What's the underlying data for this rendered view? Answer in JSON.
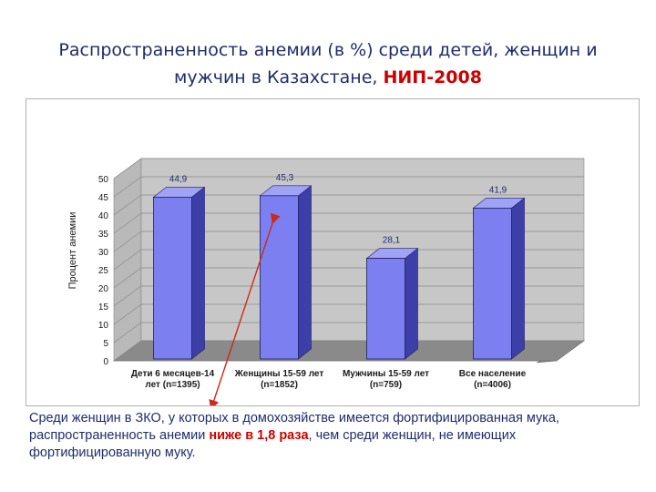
{
  "title": {
    "part1": "Распространенность анемии (в %) среди детей, женщин и",
    "part2": "мужчин в Казахстане, ",
    "highlight": "НИП-2008"
  },
  "colors": {
    "title": "#1f2d6b",
    "highlight": "#cc0000",
    "bar_front": "#7b7ff0",
    "bar_side": "#3d3fa8",
    "bar_top": "#9fa2f5",
    "wall": "#c7c7c7",
    "floor": "#8a8a8a",
    "arrow": "#cc2a1a"
  },
  "chart_data": {
    "type": "bar",
    "ylabel": "Процент анемии",
    "ylim": [
      0,
      50
    ],
    "yticks": [
      "0",
      "5",
      "10",
      "15",
      "20",
      "25",
      "30",
      "35",
      "40",
      "45",
      "50"
    ],
    "categories": [
      [
        "Дети 6 месяцев-14",
        "лет (n=1395)"
      ],
      [
        "Женщины 15-59 лет",
        "(n=1852)"
      ],
      [
        "Мужчины 15-59 лет",
        "(n=759)"
      ],
      [
        "Все население",
        "(n=4006)"
      ]
    ],
    "values": [
      44.9,
      45.3,
      28.1,
      41.9
    ],
    "value_labels": [
      "44,9",
      "45,3",
      "28,1",
      "41,9"
    ],
    "grid": true
  },
  "note": {
    "before": "Среди женщин в ЗКО, у которых в домохозяйстве имеется фортифицированная мука, распространенность анемии ",
    "highlight": "ниже в 1,8 раза",
    "after": ", чем среди женщин, не имеющих фортифицированную муку."
  }
}
